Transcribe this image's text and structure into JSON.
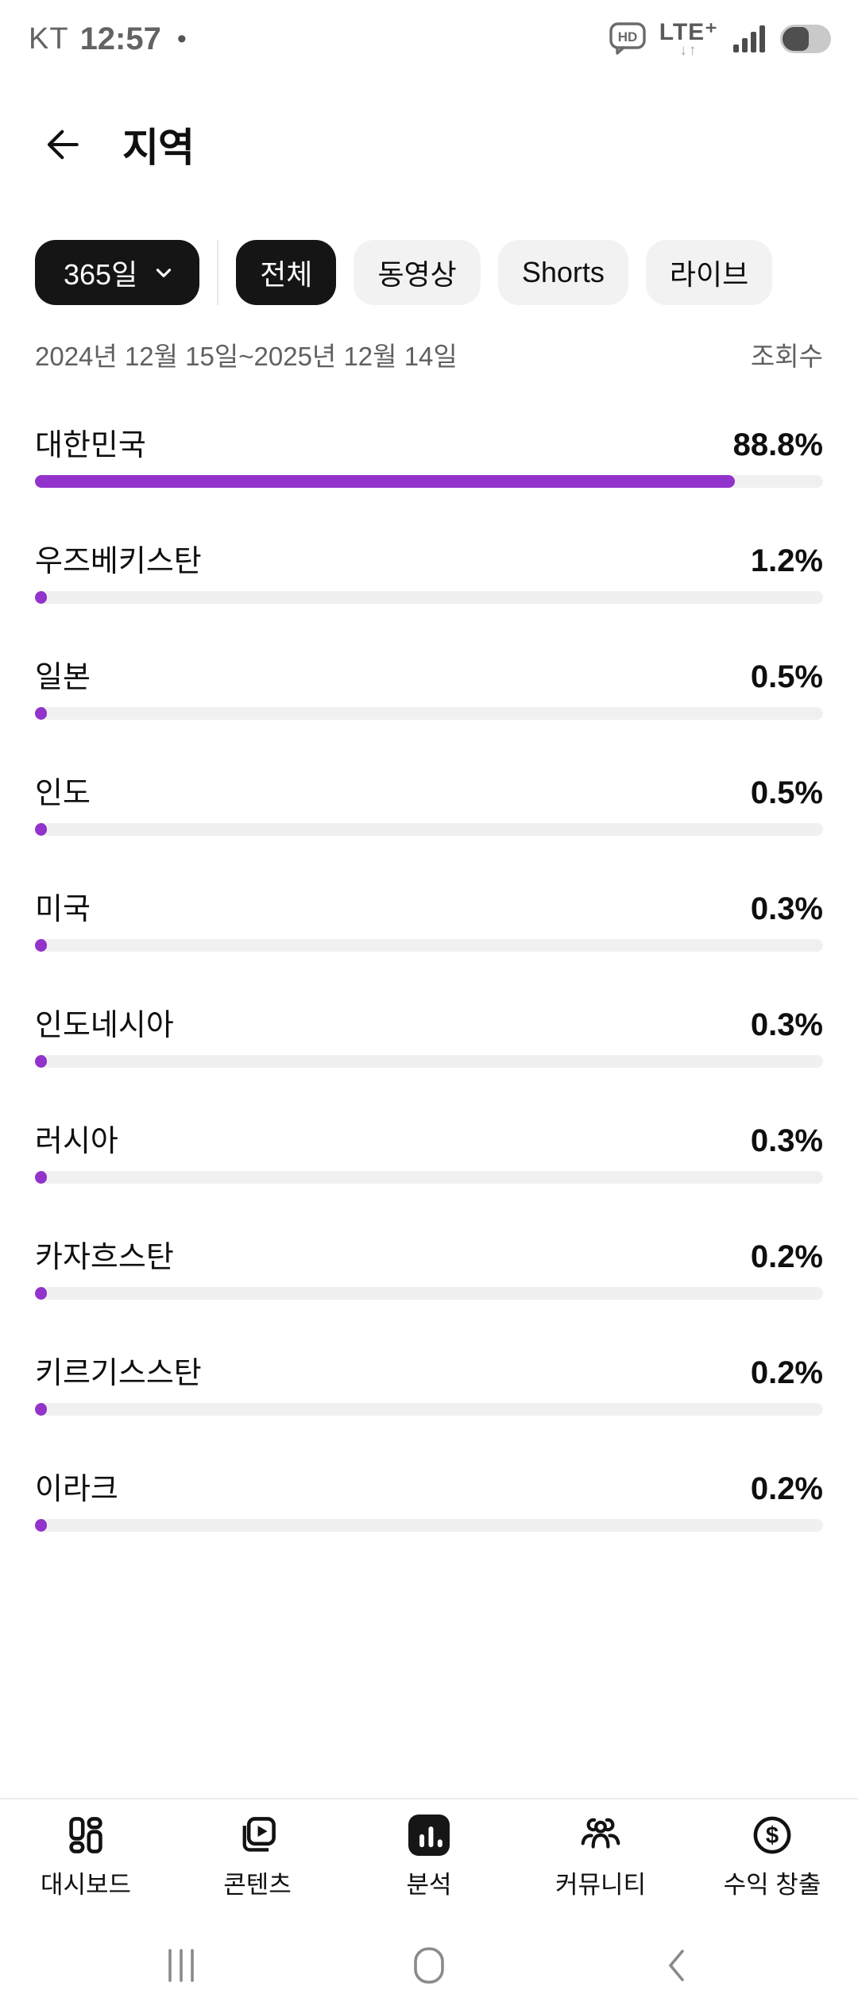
{
  "status_bar": {
    "carrier": "KT",
    "time": "12:57",
    "notification_dot": "•",
    "hd_label": "HD",
    "network_label": "LTE⁺",
    "network_arrows": "↓↑"
  },
  "header": {
    "title": "지역"
  },
  "filters": {
    "period_label": "365일",
    "tabs": [
      {
        "label": "전체",
        "active": true
      },
      {
        "label": "동영상",
        "active": false
      },
      {
        "label": "Shorts",
        "active": false
      },
      {
        "label": "라이브",
        "active": false
      }
    ]
  },
  "meta": {
    "date_range": "2024년 12월 15일~2025년 12월 14일",
    "metric_label": "조회수"
  },
  "chart_data": {
    "type": "bar",
    "orientation": "horizontal",
    "title": "지역",
    "metric": "조회수",
    "categories": [
      "대한민국",
      "우즈베키스탄",
      "일본",
      "인도",
      "미국",
      "인도네시아",
      "러시아",
      "카자흐스탄",
      "키르기스스탄",
      "이라크"
    ],
    "values": [
      88.8,
      1.2,
      0.5,
      0.5,
      0.3,
      0.3,
      0.3,
      0.2,
      0.2,
      0.2
    ],
    "unit": "%",
    "xlim": [
      0,
      100
    ]
  },
  "regions": [
    {
      "name": "대한민국",
      "percent": 88.8,
      "value_label": "88.8%"
    },
    {
      "name": "우즈베키스탄",
      "percent": 1.2,
      "value_label": "1.2%"
    },
    {
      "name": "일본",
      "percent": 0.5,
      "value_label": "0.5%"
    },
    {
      "name": "인도",
      "percent": 0.5,
      "value_label": "0.5%"
    },
    {
      "name": "미국",
      "percent": 0.3,
      "value_label": "0.3%"
    },
    {
      "name": "인도네시아",
      "percent": 0.3,
      "value_label": "0.3%"
    },
    {
      "name": "러시아",
      "percent": 0.3,
      "value_label": "0.3%"
    },
    {
      "name": "카자흐스탄",
      "percent": 0.2,
      "value_label": "0.2%"
    },
    {
      "name": "키르기스스탄",
      "percent": 0.2,
      "value_label": "0.2%"
    },
    {
      "name": "이라크",
      "percent": 0.2,
      "value_label": "0.2%"
    }
  ],
  "bottom_nav": {
    "items": [
      {
        "label": "대시보드",
        "icon": "dashboard-icon",
        "active": false
      },
      {
        "label": "콘텐츠",
        "icon": "content-icon",
        "active": false
      },
      {
        "label": "분석",
        "icon": "analytics-icon",
        "active": true
      },
      {
        "label": "커뮤니티",
        "icon": "community-icon",
        "active": false
      },
      {
        "label": "수익 창출",
        "icon": "monetization-icon",
        "active": false
      }
    ]
  },
  "colors": {
    "accent_purple": "#9233cb",
    "bar_track": "#f0f0f1",
    "chip_dark_bg": "#151515",
    "chip_light_bg": "#f2f2f2",
    "text_primary": "#0f0f0f",
    "text_secondary": "#606060",
    "status_gray": "#636363",
    "system_nav_gray": "#8a8a8a"
  }
}
